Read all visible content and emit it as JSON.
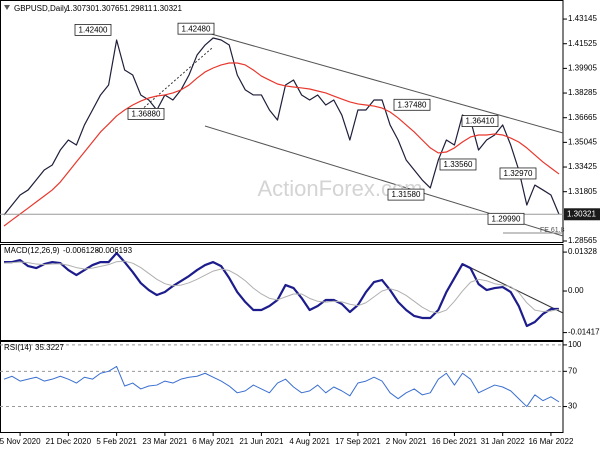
{
  "chart_data": [
    {
      "type": "line",
      "title": "GBPUSD,Daily",
      "ohlc": [
        {
          "value": 1.3073,
          "label": "1.30730"
        },
        1.30765,
        1.29811,
        1.30321
      ],
      "watermark": "ActionForex.com",
      "ylim": [
        1.285,
        1.442
      ],
      "yticks": [
        1.43145,
        1.41525,
        1.39905,
        1.38285,
        1.36665,
        1.35045,
        1.33425,
        1.31805,
        1.28565
      ],
      "last_price": 1.30321,
      "fe_label": "FE 61.8",
      "annotations": [
        {
          "value": 1.424,
          "label": "1.42400"
        },
        {
          "value": 1.4248,
          "label": "1.42480"
        },
        {
          "value": 1.3688,
          "label": "1.36880"
        },
        {
          "value": 1.3748,
          "label": "1.37480"
        },
        {
          "value": 1.3641,
          "label": "1.36410"
        },
        {
          "value": 1.3356,
          "label": "1.33560"
        },
        {
          "value": 1.3158,
          "label": "1.31580"
        },
        {
          "value": 1.3297,
          "label": "1.32970"
        },
        {
          "value": 1.2999,
          "label": "1.29990"
        }
      ],
      "series": [
        {
          "color": "#1f1f3a",
          "values": [
            1.3027,
            1.3093,
            1.3159,
            1.3192,
            1.3257,
            1.3323,
            1.3356,
            1.3454,
            1.352,
            1.3487,
            1.3619,
            1.3717,
            1.3816,
            1.3881,
            1.4177,
            1.398,
            1.3947,
            1.3816,
            1.3783,
            1.3717,
            1.3816,
            1.3783,
            1.3849,
            1.3947,
            1.4078,
            1.4144,
            1.419,
            1.4177,
            1.4144,
            1.3947,
            1.3849,
            1.3816,
            1.3816,
            1.3717,
            1.3651,
            1.3881,
            1.3914,
            1.3816,
            1.3783,
            1.3816,
            1.375,
            1.3783,
            1.3684,
            1.352,
            1.3717,
            1.3717,
            1.3783,
            1.3783,
            1.3619,
            1.352,
            1.3389,
            1.3323,
            1.3257,
            1.3205,
            1.3389,
            1.352,
            1.3487,
            1.3684,
            1.3651,
            1.3454,
            1.352,
            1.3553,
            1.3619,
            1.3487,
            1.3323,
            1.3093,
            1.3224,
            1.3192,
            1.3159,
            1.3032
          ]
        },
        {
          "color": "#e8372c",
          "values": [
            1.2955,
            1.2995,
            1.3034,
            1.3073,
            1.3113,
            1.3152,
            1.3192,
            1.3244,
            1.331,
            1.3376,
            1.3441,
            1.3507,
            1.3573,
            1.3625,
            1.3678,
            1.3717,
            1.375,
            1.3776,
            1.3796,
            1.3809,
            1.3816,
            1.3829,
            1.3849,
            1.3881,
            1.3927,
            1.3967,
            1.3993,
            1.4013,
            1.4026,
            1.4026,
            1.4013,
            1.398,
            1.394,
            1.3914,
            1.3888,
            1.3875,
            1.3868,
            1.3862,
            1.3855,
            1.3842,
            1.3829,
            1.3809,
            1.3789,
            1.377,
            1.3757,
            1.375,
            1.3743,
            1.373,
            1.3704,
            1.3665,
            1.3619,
            1.3573,
            1.352,
            1.3468,
            1.3435,
            1.3441,
            1.3468,
            1.3507,
            1.354,
            1.3553,
            1.3553,
            1.356,
            1.3553,
            1.3533,
            1.3507,
            1.3468,
            1.3422,
            1.3376,
            1.3336,
            1.3297
          ]
        }
      ]
    },
    {
      "type": "line",
      "title": "MACD(12,26,9)",
      "macd_value": -0.006128,
      "signal_value": -0.006193,
      "ylim": [
        -0.0167,
        0.0157
      ],
      "yticks": [
        0.01328,
        {
          "value": 0,
          "label": "0.00"
        },
        -0.014173
      ],
      "series": [
        {
          "color": "#1c1c8c",
          "values": [
            0.00987,
            0.00987,
            0.01056,
            0.00851,
            0.00783,
            0.00919,
            0.00987,
            0.00953,
            0.00715,
            0.00545,
            0.00715,
            0.00885,
            0.00987,
            0.00987,
            0.01294,
            0.00987,
            0.00647,
            0.00272,
            0.00034,
            -0.00136,
            -0.00034,
            0.0017,
            0.00341,
            0.00511,
            0.00715,
            0.00885,
            0.00987,
            0.00851,
            0.00443,
            -0.00034,
            -0.00375,
            -0.00647,
            -0.00647,
            -0.00511,
            -0.00306,
            0.00204,
            0.00102,
            -0.00238,
            -0.00647,
            -0.00511,
            -0.00306,
            -0.00306,
            -0.00443,
            -0.00715,
            -0.00477,
            -0.00034,
            0.00306,
            0.00375,
            0.00034,
            -0.00375,
            -0.00647,
            -0.00851,
            -0.00919,
            -0.00919,
            -0.00647,
            -0.00034,
            0.00443,
            0.00919,
            0.00783,
            0.00238,
            0.00034,
            0.00102,
            0.00136,
            -0.00034,
            -0.00511,
            -0.01192,
            -0.01056,
            -0.00783,
            -0.00613,
            -0.00613
          ]
        },
        {
          "color": "#b0b0b0",
          "values": [
            0.0095,
            0.0097,
            0.0099,
            0.0097,
            0.0092,
            0.009,
            0.0092,
            0.0093,
            0.0088,
            0.008,
            0.0075,
            0.0078,
            0.0084,
            0.009,
            0.01,
            0.0102,
            0.0095,
            0.008,
            0.006,
            0.004,
            0.0025,
            0.0018,
            0.002,
            0.0028,
            0.004,
            0.0054,
            0.0068,
            0.0075,
            0.007,
            0.0055,
            0.0035,
            0.001,
            -0.001,
            -0.0025,
            -0.003,
            -0.002,
            -0.001,
            -0.001,
            -0.0025,
            -0.0035,
            -0.0038,
            -0.0035,
            -0.0037,
            -0.0045,
            -0.005,
            -0.004,
            -0.002,
            0,
            0.0008,
            0,
            -0.0015,
            -0.0035,
            -0.0055,
            -0.007,
            -0.0075,
            -0.0065,
            -0.0035,
            0,
            0.003,
            0.004,
            0.0035,
            0.0025,
            0.002,
            0.0015,
            -0.0005,
            -0.004,
            -0.0065,
            -0.007,
            -0.0068,
            -0.00619
          ]
        }
      ]
    },
    {
      "type": "line",
      "title": "RSI(14)",
      "rsi_value": 35.3227,
      "ylim": [
        1.1,
        103.3
      ],
      "yticks": [
        100,
        70,
        30
      ],
      "grid": "dashed",
      "categories": [
        null,
        null,
        "5 Nov 2020",
        null,
        null,
        null,
        null,
        null,
        "21 Dec 2020",
        null,
        null,
        null,
        null,
        null,
        "5 Feb 2021",
        null,
        null,
        null,
        null,
        null,
        "23 Mar 2021",
        null,
        null,
        null,
        null,
        null,
        "6 May 2021",
        null,
        null,
        null,
        null,
        null,
        "21 Jun 2021",
        null,
        null,
        null,
        null,
        null,
        "4 Aug 2021",
        null,
        null,
        null,
        null,
        null,
        "17 Sep 2021",
        null,
        null,
        null,
        null,
        null,
        "2 Nov 2021",
        null,
        null,
        null,
        null,
        null,
        "16 Dec 2021",
        null,
        null,
        null,
        null,
        null,
        "31 Jan 2022",
        null,
        null,
        null,
        null,
        null,
        "16 Mar 2022",
        null
      ],
      "series": [
        {
          "color": "#3a6fd0",
          "values": [
            61.1,
            64.4,
            58.9,
            61.1,
            63.3,
            58.9,
            61.1,
            64.4,
            61.1,
            56.7,
            63.3,
            61.1,
            67.8,
            70,
            75.6,
            53.3,
            56.7,
            50,
            53.3,
            54.4,
            58.9,
            56.7,
            61.1,
            63.3,
            64.4,
            67.8,
            63.3,
            58.9,
            53.3,
            45.6,
            47.8,
            54.4,
            50,
            45.6,
            56.7,
            61.1,
            52.2,
            45.6,
            47.8,
            54.4,
            45.6,
            52.2,
            47.8,
            42.2,
            56.7,
            58.9,
            63.3,
            58.9,
            45.6,
            38.9,
            45.6,
            50,
            43.3,
            45.6,
            61.1,
            67.8,
            54.4,
            67.8,
            61.1,
            45.6,
            50,
            54.4,
            52.2,
            47.8,
            38.9,
            30,
            43.3,
            36.7,
            41.1,
            35.3
          ]
        }
      ]
    }
  ]
}
